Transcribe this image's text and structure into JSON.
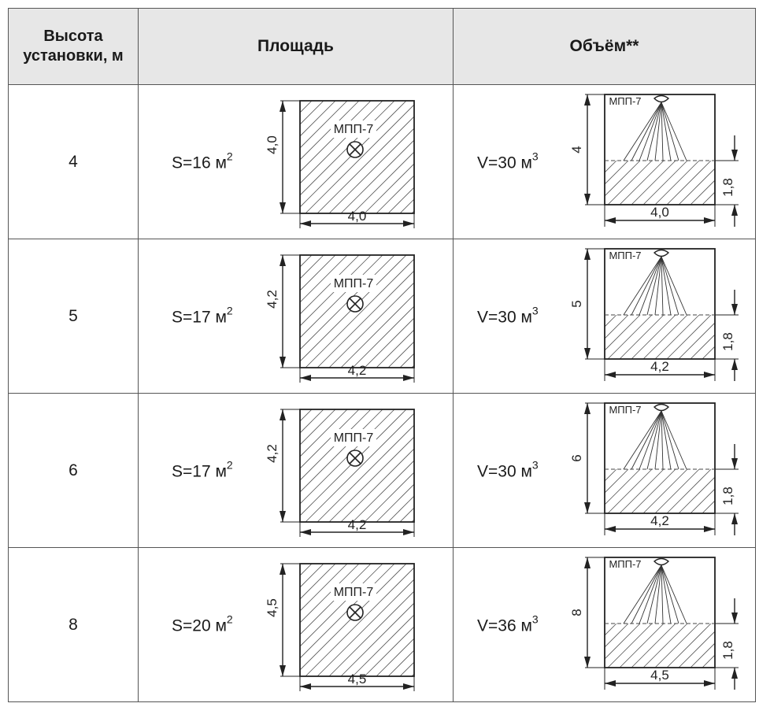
{
  "header": {
    "height_label": "Высота установки, м",
    "area_label": "Площадь",
    "volume_label": "Объём**"
  },
  "rows": [
    {
      "height": "4",
      "area_label": "S=16 м",
      "area_unit_exp": "2",
      "side": "4,0",
      "volume_label": "V=30 м",
      "volume_unit_exp": "3",
      "vol_height": "4",
      "vol_width": "4,0",
      "zone_height": "1,8",
      "device": "МПП-7"
    },
    {
      "height": "5",
      "area_label": "S=17 м",
      "area_unit_exp": "2",
      "side": "4,2",
      "volume_label": "V=30 м",
      "volume_unit_exp": "3",
      "vol_height": "5",
      "vol_width": "4,2",
      "zone_height": "1,8",
      "device": "МПП-7"
    },
    {
      "height": "6",
      "area_label": "S=17 м",
      "area_unit_exp": "2",
      "side": "4,2",
      "volume_label": "V=30 м",
      "volume_unit_exp": "3",
      "vol_height": "6",
      "vol_width": "4,2",
      "zone_height": "1,8",
      "device": "МПП-7"
    },
    {
      "height": "8",
      "area_label": "S=20 м",
      "area_unit_exp": "2",
      "side": "4,5",
      "volume_label": "V=36 м",
      "volume_unit_exp": "3",
      "vol_height": "8",
      "vol_width": "4,5",
      "zone_height": "1,8",
      "device": "МПП-7"
    }
  ]
}
